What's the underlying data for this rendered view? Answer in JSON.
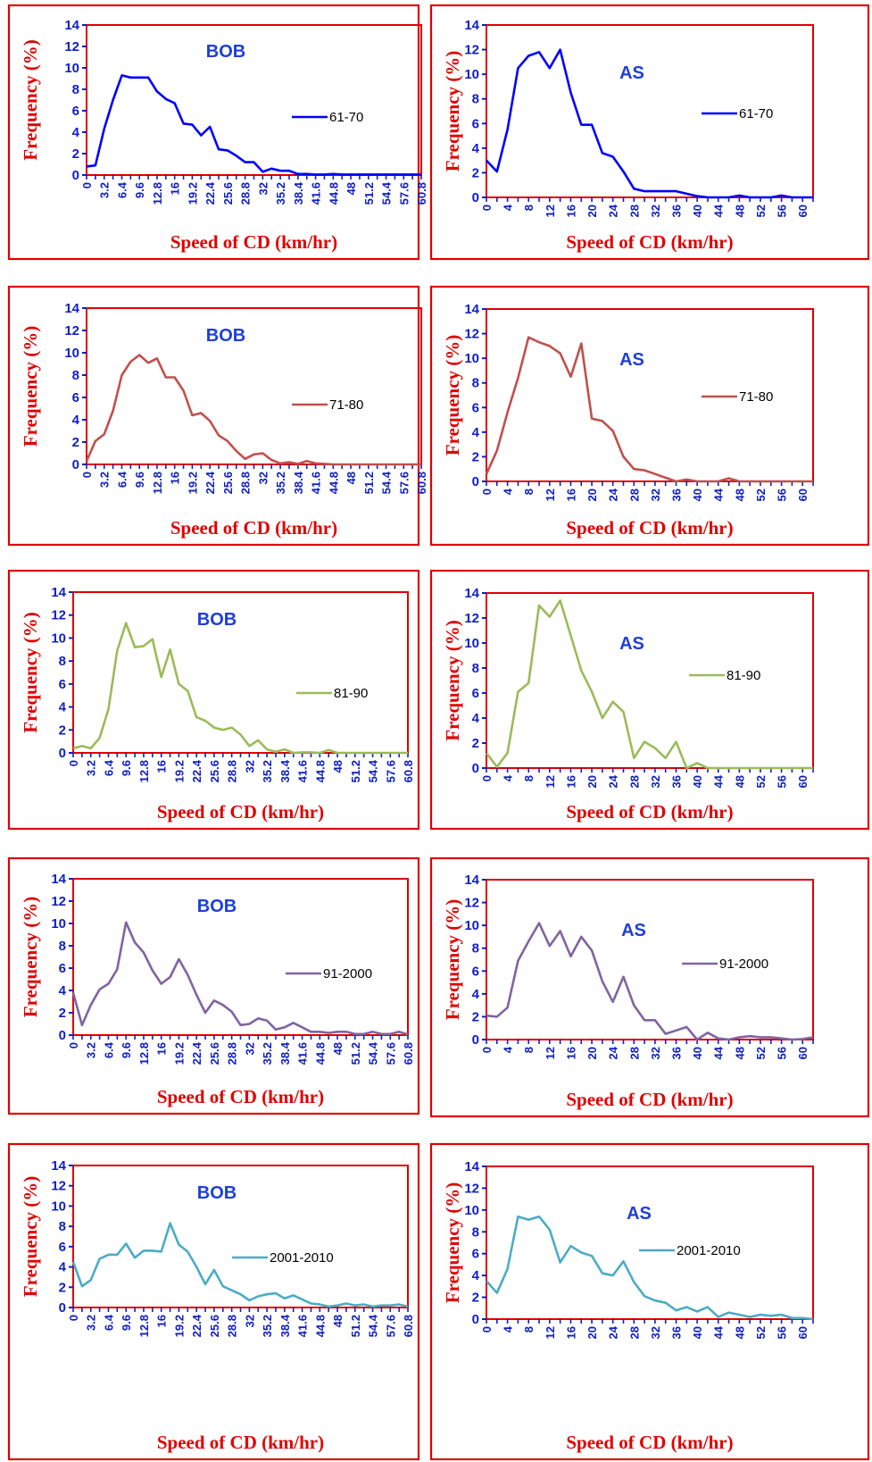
{
  "colors": {
    "frame": "#e00000",
    "plot_border": "#e00000",
    "title": "#1f3fd6",
    "tick": "#1020c0",
    "label": "#e00000"
  },
  "chart_data": [
    {
      "type": "line",
      "title": "BOB",
      "xlabel": "Speed of CD (km/hr)",
      "ylabel": "Frequency (%)",
      "ylim": [
        0,
        14
      ],
      "yticks": [
        0,
        2,
        4,
        6,
        8,
        10,
        12,
        14
      ],
      "xlim": [
        0,
        60.8
      ],
      "xtick_step": 3.2,
      "xtick_labels": [
        "0",
        "3.2",
        "6.4",
        "9.6",
        "12.8",
        "16",
        "19.2",
        "22.4",
        "25.6",
        "28.8",
        "32",
        "35.2",
        "38.4",
        "41.6",
        "44.8",
        "48",
        "51.2",
        "54.4",
        "57.6",
        "60.8"
      ],
      "legend_position": "right",
      "series": [
        {
          "name": "61-70",
          "color": "#0000ff",
          "x_step": 1.6,
          "values": [
            0.8,
            0.9,
            4.3,
            7.0,
            9.3,
            9.1,
            9.1,
            9.1,
            7.8,
            7.1,
            6.7,
            4.8,
            4.7,
            3.7,
            4.5,
            2.4,
            2.3,
            1.8,
            1.2,
            1.2,
            0.3,
            0.6,
            0.4,
            0.4,
            0.1,
            0.1,
            0.05,
            0.05,
            0.1,
            0.05,
            0.05,
            0.05,
            0.05,
            0.05,
            0.05,
            0.05,
            0.05,
            0.05,
            0.05
          ]
        }
      ]
    },
    {
      "type": "line",
      "title": "AS",
      "xlabel": "Speed of CD (km/hr)",
      "ylabel": "Frequency (%)",
      "ylim": [
        0,
        14
      ],
      "yticks": [
        0,
        2,
        4,
        6,
        8,
        10,
        12,
        14
      ],
      "xlim": [
        0,
        62
      ],
      "xtick_step": 4,
      "xtick_labels": [
        "0",
        "4",
        "8",
        "12",
        "16",
        "20",
        "24",
        "28",
        "32",
        "36",
        "40",
        "44",
        "48",
        "52",
        "56",
        "60"
      ],
      "legend_position": "right",
      "series": [
        {
          "name": "61-70",
          "color": "#0000ff",
          "x_step": 2,
          "values": [
            3.0,
            2.1,
            5.5,
            10.5,
            11.5,
            11.8,
            10.5,
            12.0,
            8.5,
            5.9,
            5.9,
            3.6,
            3.3,
            2.1,
            0.7,
            0.5,
            0.5,
            0.5,
            0.5,
            0.3,
            0.1,
            0.0,
            0.0,
            0.0,
            0.15,
            0.0,
            0.0,
            0.0,
            0.15,
            0.0,
            0.0,
            0.0
          ]
        }
      ]
    },
    {
      "type": "line",
      "title": "BOB",
      "xlabel": "Speed of CD (km/hr)",
      "ylabel": "Frequency (%)",
      "ylim": [
        0,
        14
      ],
      "yticks": [
        0,
        2,
        4,
        6,
        8,
        10,
        12,
        14
      ],
      "xlim": [
        0,
        60.8
      ],
      "xtick_step": 3.2,
      "xtick_labels": [
        "0",
        "3.2",
        "6.4",
        "9.6",
        "12.8",
        "16",
        "19.2",
        "22.4",
        "25.6",
        "28.8",
        "32",
        "35.2",
        "38.4",
        "41.6",
        "44.8",
        "48",
        "51.2",
        "54.4",
        "57.6",
        "60.8"
      ],
      "legend_position": "right",
      "series": [
        {
          "name": "71-80",
          "color": "#c0504d",
          "x_step": 1.6,
          "values": [
            0.3,
            2.1,
            2.7,
            4.8,
            8.0,
            9.2,
            9.8,
            9.1,
            9.5,
            7.8,
            7.8,
            6.6,
            4.4,
            4.6,
            3.9,
            2.6,
            2.1,
            1.2,
            0.5,
            0.9,
            1.0,
            0.4,
            0.1,
            0.2,
            0.05,
            0.3,
            0.1,
            0.05,
            0.0,
            0.0,
            0.0,
            0.0,
            0.0,
            0.0,
            0.0,
            0.0,
            0.0,
            0.0,
            0.0
          ]
        }
      ]
    },
    {
      "type": "line",
      "title": "AS",
      "xlabel": "Speed of CD (km/hr)",
      "ylabel": "Frequency (%)",
      "ylim": [
        0,
        14
      ],
      "yticks": [
        0,
        2,
        4,
        6,
        8,
        10,
        12,
        14
      ],
      "xlim": [
        0,
        62
      ],
      "xtick_step": 4,
      "xtick_labels": [
        "0",
        "4",
        "8",
        "12",
        "16",
        "20",
        "24",
        "28",
        "32",
        "36",
        "40",
        "44",
        "48",
        "52",
        "56",
        "60"
      ],
      "legend_position": "right",
      "series": [
        {
          "name": "71-80",
          "color": "#c0504d",
          "x_step": 2,
          "values": [
            0.6,
            2.5,
            5.6,
            8.4,
            11.7,
            11.3,
            11.0,
            10.4,
            8.5,
            11.2,
            5.1,
            4.9,
            4.1,
            2.0,
            1.0,
            0.9,
            0.6,
            0.3,
            0.0,
            0.15,
            0.0,
            0.0,
            0.0,
            0.25,
            0.0,
            0.0,
            0.0,
            0.0,
            0.0,
            0.0,
            0.0,
            0.0
          ]
        }
      ]
    },
    {
      "type": "line",
      "title": "BOB",
      "xlabel": "Speed of CD (km/hr)",
      "ylabel": "Frequency (%)",
      "ylim": [
        0,
        14
      ],
      "yticks": [
        0,
        2,
        4,
        6,
        8,
        10,
        12,
        14
      ],
      "xlim": [
        0,
        60.8
      ],
      "xtick_step": 3.2,
      "xtick_labels": [
        "0",
        "3.2",
        "6.4",
        "9.6",
        "12.8",
        "16",
        "19.2",
        "22.4",
        "25.6",
        "28.8",
        "32",
        "35.2",
        "38.4",
        "41.6",
        "44.8",
        "48",
        "51.2",
        "54.4",
        "57.6",
        "60.8"
      ],
      "legend_position": "right",
      "series": [
        {
          "name": "81-90",
          "color": "#9bbb59",
          "x_step": 1.6,
          "values": [
            0.4,
            0.6,
            0.4,
            1.3,
            3.8,
            8.9,
            11.3,
            9.2,
            9.3,
            9.9,
            6.6,
            9.0,
            6.0,
            5.4,
            3.1,
            2.8,
            2.2,
            2.0,
            2.2,
            1.6,
            0.6,
            1.1,
            0.3,
            0.1,
            0.3,
            0.0,
            0.05,
            0.05,
            0.0,
            0.25,
            0.0,
            0.0,
            0.0,
            0.0,
            0.0,
            0.0,
            0.0,
            0.0,
            0.0
          ]
        }
      ]
    },
    {
      "type": "line",
      "title": "AS",
      "xlabel": "Speed of CD (km/hr)",
      "ylabel": "Frequency (%)",
      "ylim": [
        0,
        14
      ],
      "yticks": [
        0,
        2,
        4,
        6,
        8,
        10,
        12,
        14
      ],
      "xlim": [
        0,
        62
      ],
      "xtick_step": 4,
      "xtick_labels": [
        "0",
        "4",
        "8",
        "12",
        "16",
        "20",
        "24",
        "28",
        "32",
        "36",
        "40",
        "44",
        "48",
        "52",
        "56",
        "60"
      ],
      "legend_position": "right",
      "series": [
        {
          "name": "81-90",
          "color": "#9bbb59",
          "x_step": 2,
          "values": [
            1.2,
            0.1,
            1.2,
            6.1,
            6.8,
            13.0,
            12.1,
            13.4,
            10.6,
            7.8,
            6.1,
            4.0,
            5.3,
            4.5,
            0.8,
            2.1,
            1.6,
            0.8,
            2.1,
            0.0,
            0.4,
            0.0,
            0.0,
            0.0,
            0.0,
            0.0,
            0.0,
            0.0,
            0.0,
            0.0,
            0.0,
            0.0
          ]
        }
      ]
    },
    {
      "type": "line",
      "title": "BOB",
      "xlabel": "Speed of CD (km/hr)",
      "ylabel": "Frequency (%)",
      "ylim": [
        0,
        14
      ],
      "yticks": [
        0,
        2,
        4,
        6,
        8,
        10,
        12,
        14
      ],
      "xlim": [
        0,
        60.8
      ],
      "xtick_step": 3.2,
      "xtick_labels": [
        "0",
        "3.2",
        "6.4",
        "9.6",
        "12.8",
        "16",
        "19.2",
        "22.4",
        "25.6",
        "28.8",
        "32",
        "35.2",
        "38.4",
        "41.6",
        "44.8",
        "48",
        "51.2",
        "54.4",
        "57.6",
        "60.8"
      ],
      "legend_position": "right",
      "series": [
        {
          "name": "91-2000",
          "color": "#8064a2",
          "x_step": 1.6,
          "values": [
            3.8,
            0.9,
            2.7,
            4.1,
            4.6,
            5.9,
            10.1,
            8.3,
            7.4,
            5.8,
            4.6,
            5.2,
            6.8,
            5.4,
            3.6,
            2.0,
            3.1,
            2.7,
            2.1,
            0.9,
            1.0,
            1.5,
            1.3,
            0.5,
            0.7,
            1.1,
            0.7,
            0.3,
            0.3,
            0.2,
            0.3,
            0.3,
            0.1,
            0.1,
            0.3,
            0.1,
            0.1,
            0.3,
            0.05
          ]
        }
      ]
    },
    {
      "type": "line",
      "title": "AS",
      "xlabel": "Speed of CD (km/hr)",
      "ylabel": "Frequency (%)",
      "ylim": [
        0,
        14
      ],
      "yticks": [
        0,
        2,
        4,
        6,
        8,
        10,
        12,
        14
      ],
      "xlim": [
        0,
        62
      ],
      "xtick_step": 4,
      "xtick_labels": [
        "0",
        "4",
        "8",
        "12",
        "16",
        "20",
        "24",
        "28",
        "32",
        "36",
        "40",
        "44",
        "48",
        "52",
        "56",
        "60"
      ],
      "legend_position": "right",
      "series": [
        {
          "name": "91-2000",
          "color": "#8064a2",
          "x_step": 2,
          "values": [
            2.1,
            2.0,
            2.8,
            6.9,
            8.6,
            10.2,
            8.2,
            9.5,
            7.3,
            9.0,
            7.8,
            5.1,
            3.3,
            5.5,
            3.0,
            1.7,
            1.7,
            0.5,
            0.8,
            1.1,
            0.0,
            0.6,
            0.1,
            0.0,
            0.2,
            0.3,
            0.2,
            0.2,
            0.1,
            0.0,
            0.05,
            0.2
          ]
        }
      ]
    },
    {
      "type": "line",
      "title": "BOB",
      "xlabel": "Speed of CD (km/hr)",
      "ylabel": "Frequency (%)",
      "ylim": [
        0,
        14
      ],
      "yticks": [
        0,
        2,
        4,
        6,
        8,
        10,
        12,
        14
      ],
      "xlim": [
        0,
        60.8
      ],
      "xtick_step": 3.2,
      "xtick_labels": [
        "0",
        "3.2",
        "6.4",
        "9.6",
        "12.8",
        "16",
        "19.2",
        "22.4",
        "25.6",
        "28.8",
        "32",
        "35.2",
        "38.4",
        "41.6",
        "44.8",
        "48",
        "51.2",
        "54.4",
        "57.6",
        "60.8"
      ],
      "legend_position": "right",
      "series": [
        {
          "name": "2001-2010",
          "color": "#4bacc6",
          "x_step": 1.6,
          "values": [
            4.5,
            2.1,
            2.7,
            4.8,
            5.2,
            5.2,
            6.3,
            4.9,
            5.6,
            5.6,
            5.5,
            8.3,
            6.2,
            5.5,
            4.0,
            2.3,
            3.7,
            2.1,
            1.7,
            1.3,
            0.7,
            1.1,
            1.3,
            1.4,
            0.9,
            1.2,
            0.8,
            0.4,
            0.3,
            0.1,
            0.2,
            0.4,
            0.2,
            0.3,
            0.1,
            0.2,
            0.2,
            0.3,
            0.1
          ]
        }
      ]
    },
    {
      "type": "line",
      "title": "AS",
      "xlabel": "Speed of CD (km/hr)",
      "ylabel": "Frequency (%)",
      "ylim": [
        0,
        14
      ],
      "yticks": [
        0,
        2,
        4,
        6,
        8,
        10,
        12,
        14
      ],
      "xlim": [
        0,
        62
      ],
      "xtick_step": 4,
      "xtick_labels": [
        "0",
        "4",
        "8",
        "12",
        "16",
        "20",
        "24",
        "28",
        "32",
        "36",
        "40",
        "44",
        "48",
        "52",
        "56",
        "60"
      ],
      "legend_position": "right",
      "series": [
        {
          "name": "2001-2010",
          "color": "#4bacc6",
          "x_step": 2,
          "values": [
            3.5,
            2.4,
            4.6,
            9.4,
            9.1,
            9.4,
            8.2,
            5.2,
            6.7,
            6.1,
            5.8,
            4.2,
            4.0,
            5.3,
            3.4,
            2.1,
            1.7,
            1.5,
            0.8,
            1.1,
            0.7,
            1.1,
            0.2,
            0.6,
            0.4,
            0.2,
            0.4,
            0.3,
            0.4,
            0.1,
            0.1,
            0.0
          ]
        }
      ]
    }
  ]
}
